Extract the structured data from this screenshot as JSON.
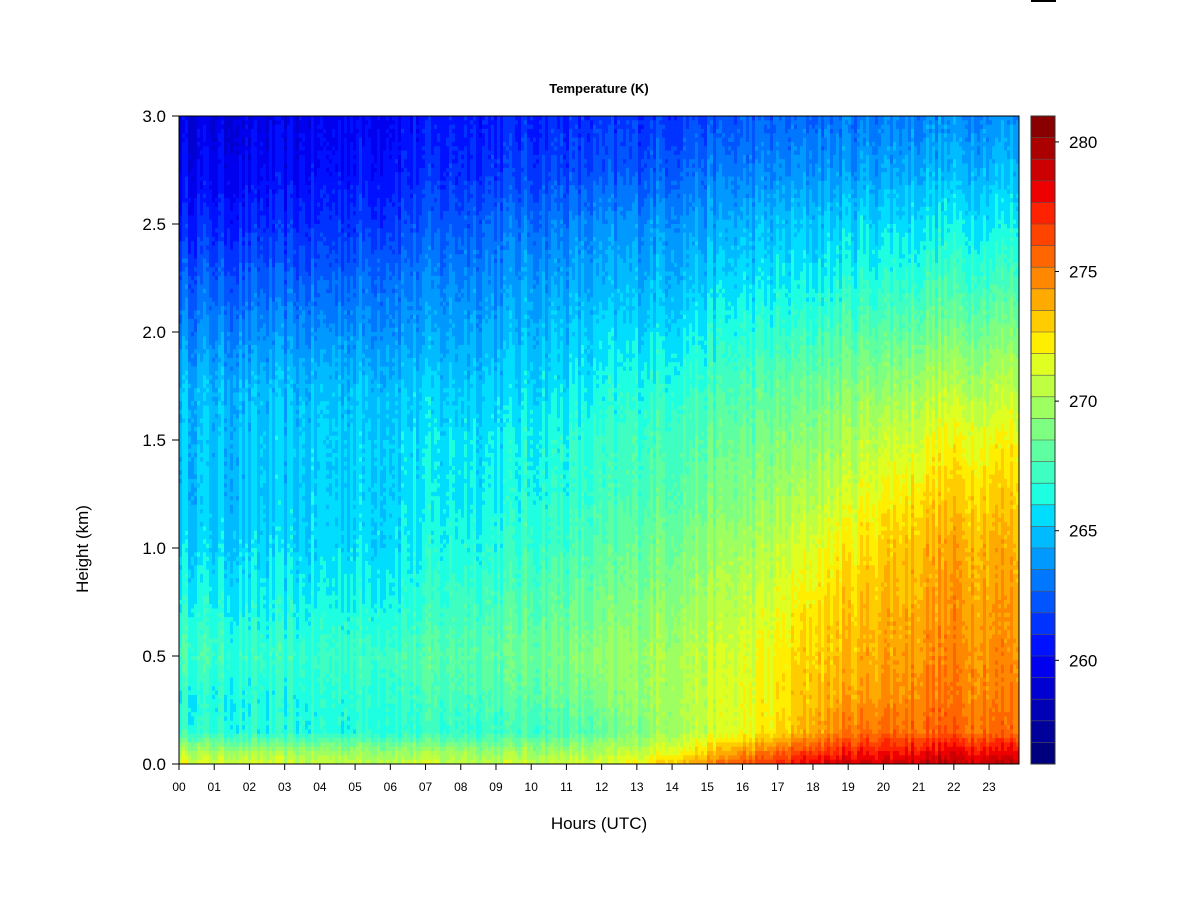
{
  "chart_data": {
    "type": "heatmap",
    "title": "Temperature (K)",
    "xlabel": "Hours (UTC)",
    "ylabel": "Height (km)",
    "x_ticks": [
      "00",
      "01",
      "02",
      "03",
      "04",
      "05",
      "06",
      "07",
      "08",
      "09",
      "10",
      "11",
      "12",
      "13",
      "14",
      "15",
      "16",
      "17",
      "18",
      "19",
      "20",
      "21",
      "22",
      "23"
    ],
    "xlim": [
      0,
      23.85
    ],
    "y_ticks": [
      "0.0",
      "0.5",
      "1.0",
      "1.5",
      "2.0",
      "2.5",
      "3.0"
    ],
    "ylim": [
      0,
      3.0
    ],
    "colorbar": {
      "range": [
        256,
        281
      ],
      "levels": 25,
      "ticks": [
        "260",
        "265",
        "270",
        "275",
        "280"
      ],
      "colors": [
        "#00007F",
        "#00009A",
        "#0000B6",
        "#0000D2",
        "#0000EE",
        "#0011FF",
        "#0033FF",
        "#0055FF",
        "#0077FF",
        "#0099FF",
        "#00BBFF",
        "#00DDFF",
        "#1EFFE1",
        "#3EFFC1",
        "#5EFFA1",
        "#7EFF81",
        "#9EFF61",
        "#BEFF41",
        "#DEFF21",
        "#FFEE00",
        "#FFCC00",
        "#FFAA00",
        "#FF8800",
        "#FF6600",
        "#FF4400",
        "#FF2200",
        "#EE0000",
        "#CC0000",
        "#AA0000",
        "#880000"
      ]
    },
    "grid": false,
    "temperature_grid": {
      "hours": [
        0,
        2,
        4,
        6,
        8,
        10,
        12,
        13,
        14,
        15,
        16,
        17,
        18,
        19,
        20,
        21,
        22,
        23.85
      ],
      "heights_km": [
        0.0,
        0.05,
        0.15,
        0.3,
        0.5,
        0.75,
        1.0,
        1.25,
        1.5,
        1.75,
        2.0,
        2.25,
        2.5,
        2.75,
        3.0
      ],
      "values": [
        [
          271.5,
          270.5,
          267.0,
          266.5,
          267.5,
          266.5,
          265.5,
          265.0,
          265.0,
          264.8,
          263.5,
          262.5,
          261.0,
          260.0,
          259.5
        ],
        [
          271.0,
          270.0,
          266.5,
          266.3,
          267.0,
          266.0,
          265.3,
          265.0,
          265.0,
          264.6,
          263.5,
          262.3,
          261.0,
          260.0,
          259.5
        ],
        [
          270.8,
          269.8,
          266.5,
          266.5,
          267.0,
          266.2,
          265.5,
          265.2,
          265.2,
          264.8,
          263.7,
          262.5,
          261.2,
          260.3,
          259.8
        ],
        [
          270.8,
          269.8,
          266.8,
          267.0,
          267.5,
          266.5,
          265.8,
          265.6,
          265.5,
          265.0,
          264.0,
          263.0,
          261.8,
          260.8,
          260.3
        ],
        [
          270.8,
          269.8,
          267.0,
          267.5,
          268.0,
          267.2,
          266.5,
          266.0,
          265.8,
          265.2,
          264.3,
          263.5,
          262.5,
          261.3,
          260.8
        ],
        [
          270.8,
          269.8,
          267.3,
          268.0,
          268.5,
          267.8,
          267.0,
          266.5,
          266.2,
          265.5,
          264.8,
          264.0,
          263.0,
          261.7,
          261.0
        ],
        [
          271.0,
          270.2,
          268.0,
          268.7,
          269.2,
          268.5,
          267.7,
          267.0,
          266.8,
          266.0,
          265.2,
          264.3,
          263.5,
          262.0,
          261.2
        ],
        [
          272.0,
          270.8,
          269.0,
          269.5,
          269.7,
          269.0,
          268.3,
          267.6,
          267.2,
          266.5,
          265.5,
          264.6,
          263.7,
          262.3,
          261.4
        ],
        [
          273.5,
          272.0,
          270.0,
          270.2,
          270.2,
          269.5,
          268.8,
          268.0,
          267.6,
          266.8,
          265.8,
          264.8,
          264.0,
          262.6,
          261.6
        ],
        [
          274.5,
          273.0,
          270.8,
          270.8,
          270.7,
          270.0,
          269.4,
          268.6,
          268.0,
          267.2,
          266.2,
          265.2,
          264.2,
          263.0,
          261.9
        ],
        [
          276.0,
          274.5,
          271.6,
          271.5,
          271.3,
          270.6,
          269.9,
          269.0,
          268.4,
          267.6,
          266.6,
          265.5,
          264.5,
          263.2,
          262.2
        ],
        [
          277.0,
          275.5,
          272.5,
          272.2,
          272.0,
          271.2,
          270.5,
          269.6,
          268.8,
          268.0,
          266.8,
          265.7,
          264.8,
          263.5,
          262.5
        ],
        [
          278.5,
          276.8,
          274.0,
          273.5,
          273.0,
          272.5,
          271.5,
          270.3,
          269.3,
          268.5,
          267.2,
          266.0,
          265.0,
          263.8,
          262.7
        ],
        [
          278.8,
          277.3,
          275.0,
          274.0,
          273.5,
          273.0,
          272.2,
          271.0,
          270.0,
          269.0,
          267.6,
          266.3,
          265.3,
          264.0,
          263.0
        ],
        [
          279.0,
          277.8,
          275.5,
          274.5,
          274.0,
          273.6,
          273.0,
          272.0,
          270.8,
          269.5,
          268.0,
          266.7,
          265.5,
          264.3,
          263.2
        ],
        [
          279.2,
          278.0,
          275.5,
          275.0,
          274.5,
          274.0,
          273.6,
          272.6,
          271.3,
          270.0,
          268.4,
          267.0,
          265.8,
          264.5,
          263.4
        ],
        [
          279.3,
          278.2,
          275.8,
          275.2,
          274.8,
          274.4,
          274.0,
          273.0,
          271.8,
          270.3,
          268.7,
          267.2,
          266.0,
          264.7,
          263.6
        ],
        [
          279.3,
          278.2,
          275.5,
          275.0,
          274.6,
          274.2,
          273.8,
          273.0,
          272.0,
          270.5,
          269.0,
          267.4,
          266.2,
          264.8,
          263.8
        ]
      ]
    }
  }
}
